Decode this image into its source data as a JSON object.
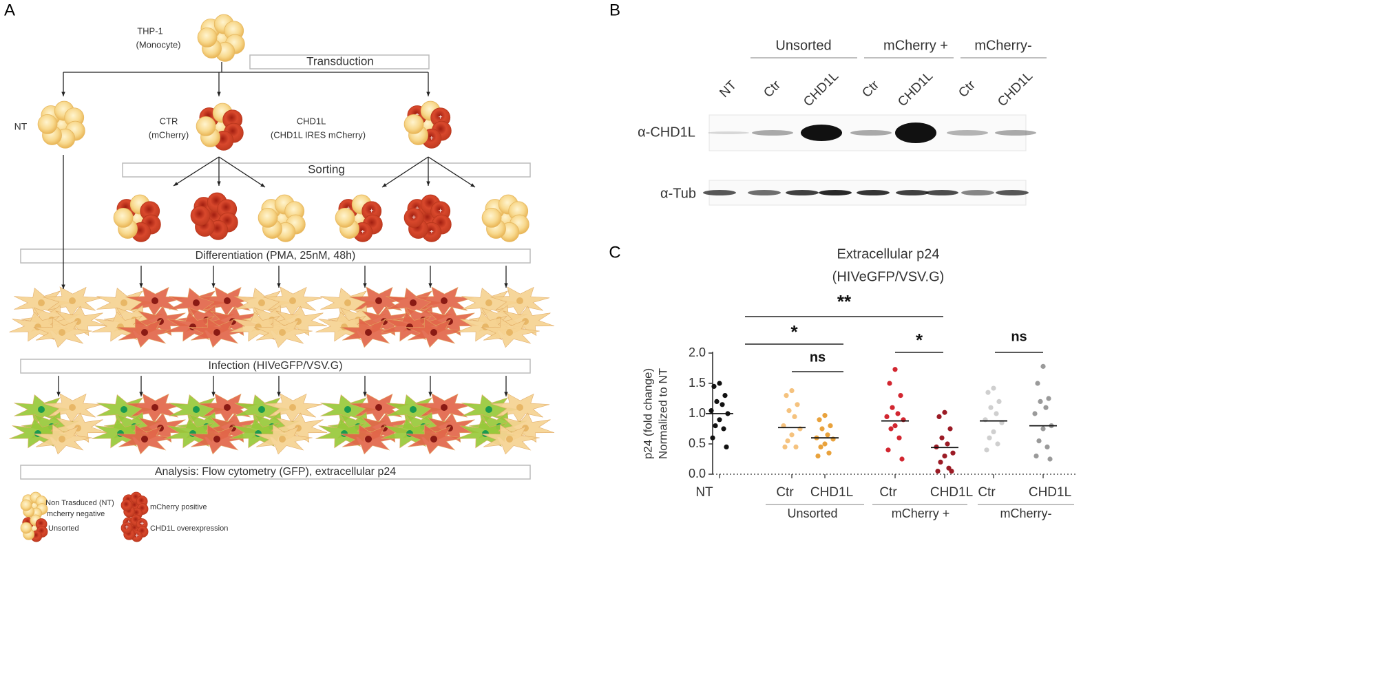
{
  "panel_a": {
    "letter": "A",
    "source": [
      "THP-1",
      "(Monocyte)"
    ],
    "transduction": "Transduction",
    "nt": "NT",
    "ctr": [
      "CTR",
      "(mCherry)"
    ],
    "chd1l": [
      "CHD1L",
      "(CHD1L IRES mCherry)"
    ],
    "sorting": "Sorting",
    "differentiation": "Differentiation (PMA, 25nM, 48h)",
    "infection": "Infection (HIVeGFP/VSV.G)",
    "analysis": "Analysis: Flow cytometry (GFP), extracellular p24",
    "legend": [
      [
        "Non Trasduced (NT)",
        "mcherry negative"
      ],
      [
        "mCherry positive"
      ],
      [
        "Unsorted"
      ],
      [
        "CHD1L overexpression"
      ]
    ]
  },
  "panel_b": {
    "letter": "B",
    "groups": [
      "Unsorted",
      "mCherry +",
      "mCherry-"
    ],
    "lanes": [
      "NT",
      "Ctr",
      "CHD1L",
      "Ctr",
      "CHD1L",
      "Ctr",
      "CHD1L"
    ],
    "rows": [
      "α-CHD1L",
      "α-Tub"
    ]
  },
  "chart_data": {
    "type": "strip",
    "letter": "C",
    "title": "Extracellular p24",
    "subtitle": "(HIVeGFP/VSV.G)",
    "ylabel": [
      "p24 (fold change)",
      "Normalized to NT"
    ],
    "categories": [
      "NT",
      "Ctr",
      "CHD1L",
      "Ctr",
      "CHD1L",
      "Ctr",
      "CHD1L"
    ],
    "groups": [
      "Unsorted",
      "mCherry +",
      "mCherry-"
    ],
    "colors": [
      "#111111",
      "#f5c27e",
      "#e9a23c",
      "#d22630",
      "#9b1b25",
      "#cfcfcf",
      "#9a9a9a"
    ],
    "values": [
      [
        1.5,
        1.45,
        1.3,
        1.2,
        1.15,
        1.05,
        1.0,
        0.9,
        0.8,
        0.75,
        0.6,
        0.45
      ],
      [
        1.38,
        1.3,
        1.15,
        1.05,
        0.95,
        0.8,
        0.75,
        0.65,
        0.55,
        0.45,
        0.45
      ],
      [
        0.97,
        0.9,
        0.8,
        0.75,
        0.65,
        0.6,
        0.58,
        0.5,
        0.45,
        0.35,
        0.3
      ],
      [
        1.73,
        1.5,
        1.3,
        1.1,
        1.0,
        0.95,
        0.9,
        0.8,
        0.75,
        0.6,
        0.4,
        0.25
      ],
      [
        1.02,
        0.95,
        0.75,
        0.6,
        0.5,
        0.45,
        0.35,
        0.3,
        0.2,
        0.1,
        0.05,
        0.05
      ],
      [
        1.42,
        1.35,
        1.2,
        1.1,
        1.0,
        0.9,
        0.85,
        0.7,
        0.6,
        0.5,
        0.4
      ],
      [
        1.78,
        1.5,
        1.25,
        1.2,
        1.1,
        1.0,
        0.8,
        0.75,
        0.55,
        0.45,
        0.3,
        0.25
      ]
    ],
    "means": [
      1.0,
      0.77,
      0.6,
      0.88,
      0.44,
      0.88,
      0.8
    ],
    "ylim": [
      0,
      2
    ],
    "yticks": [
      {
        "value": 0,
        "label": "0.0"
      },
      {
        "value": 0.5,
        "label": "0.5"
      },
      {
        "value": 1,
        "label": "1.0"
      },
      {
        "value": 1.5,
        "label": "1.5"
      },
      {
        "value": 2,
        "label": "2.0"
      }
    ],
    "annotations": [
      "**",
      "*",
      "ns",
      "*",
      "ns"
    ]
  }
}
